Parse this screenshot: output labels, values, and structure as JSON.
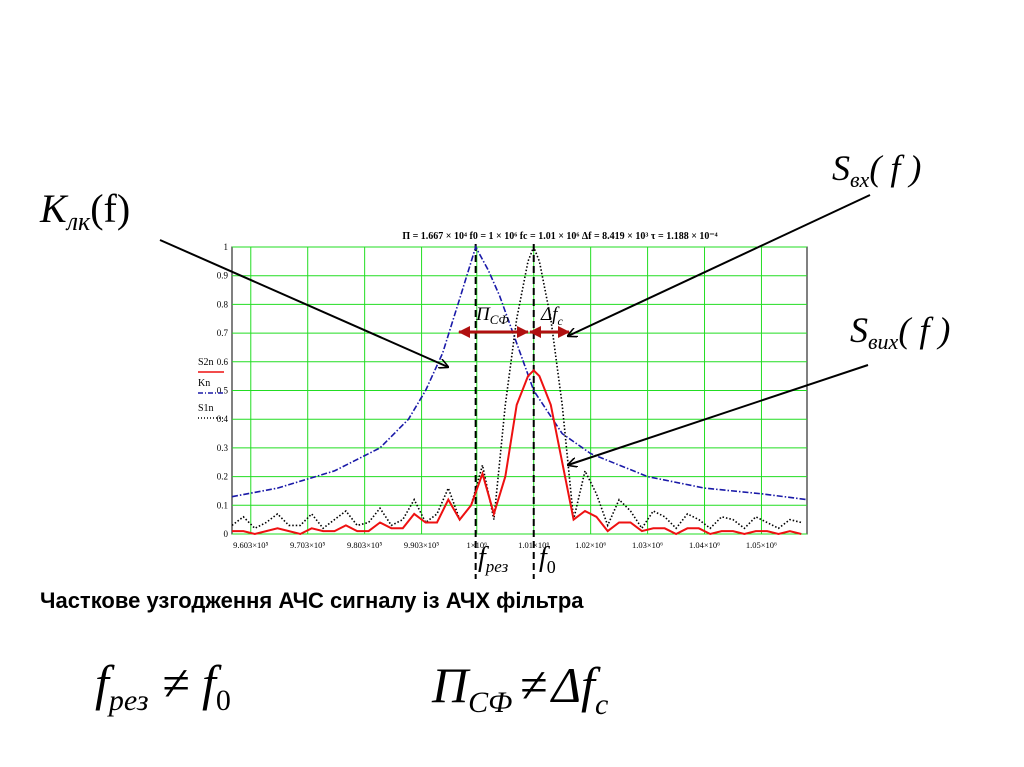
{
  "labels": {
    "k_lk": {
      "base": "K",
      "sub": "лк",
      "arg": "(f)"
    },
    "s_vkh": {
      "base": "S",
      "sub": "вх",
      "arg": "( f )"
    },
    "s_vykh": {
      "base": "S",
      "sub": "вих",
      "arg": "( f )"
    },
    "p_sf": {
      "base": "П",
      "sub": "СФ"
    },
    "delta_fc": {
      "base": "Δf",
      "sub": "c"
    },
    "f_rez": {
      "base": "f",
      "sub": "рез"
    },
    "f_0": {
      "base": "f",
      "sub": "0"
    }
  },
  "caption": "Часткове узгодження АЧС сигналу із АЧХ фільтра",
  "formula_left": {
    "lhs_base": "f",
    "lhs_sub": "рез",
    "op": "≠",
    "rhs_base": "f",
    "rhs_sub": "0"
  },
  "formula_right": {
    "lhs_base": "П",
    "lhs_sub": "СФ",
    "op": "≠",
    "rhs_base": "Δf",
    "rhs_sub": "c"
  },
  "colors": {
    "grid": "#22dd22",
    "k_curve": "#1a1aa8",
    "s1_curve": "#000000",
    "s2_curve": "#ee1111",
    "arrow_red": "#b01010",
    "markers": "#000000"
  },
  "chart_data": {
    "type": "line",
    "header": "П = 1.667 × 10⁴    f0 = 1 × 10⁶    fc = 1.01 × 10⁶    Δf = 8.419 × 10³    τ = 1.188 × 10⁻⁴",
    "xlim": [
      957000,
      1058000
    ],
    "ylim": [
      0,
      1
    ],
    "yticks": [
      0,
      0.1,
      0.2,
      0.3,
      0.4,
      0.5,
      0.6,
      0.7,
      0.8,
      0.9,
      1
    ],
    "xticks": [
      {
        "v": 960300,
        "label": "9.603×10⁵"
      },
      {
        "v": 970300,
        "label": "9.703×10⁵"
      },
      {
        "v": 980300,
        "label": "9.803×10⁵"
      },
      {
        "v": 990300,
        "label": "9.903×10⁵"
      },
      {
        "v": 1000000,
        "label": "1×10⁶"
      },
      {
        "v": 1010000,
        "label": "1.01×10⁶"
      },
      {
        "v": 1020000,
        "label": "1.02×10⁶"
      },
      {
        "v": 1030000,
        "label": "1.03×10⁶"
      },
      {
        "v": 1040000,
        "label": "1.04×10⁶"
      },
      {
        "v": 1050000,
        "label": "1.05×10⁶"
      }
    ],
    "grid": true,
    "legend": {
      "placement": "left",
      "entries": [
        {
          "name": "S2n",
          "style": "solid-red"
        },
        {
          "name": "Kn",
          "style": "dashdot-blue"
        },
        {
          "name": "S1n",
          "style": "dotted-black"
        }
      ]
    },
    "vlines": [
      999800,
      1010000
    ],
    "series": [
      {
        "name": "Kn",
        "style": "dashdot",
        "color": "#1a1aa8",
        "x": [
          957000,
          965000,
          975000,
          983000,
          988000,
          991000,
          994000,
          997000,
          999800,
          1002000,
          1004000,
          1006000,
          1010000,
          1015000,
          1020000,
          1030000,
          1040000,
          1050000,
          1058000
        ],
        "y": [
          0.13,
          0.16,
          0.22,
          0.3,
          0.4,
          0.5,
          0.63,
          0.82,
          1.0,
          0.92,
          0.83,
          0.72,
          0.5,
          0.35,
          0.28,
          0.2,
          0.16,
          0.14,
          0.12
        ]
      },
      {
        "name": "S1n",
        "style": "dotted",
        "color": "#000000",
        "x": [
          957000,
          959000,
          961000,
          963000,
          965000,
          967000,
          969000,
          971000,
          973000,
          975000,
          977000,
          979000,
          981000,
          983000,
          985000,
          987000,
          989000,
          991000,
          993000,
          995000,
          997000,
          999000,
          1001000,
          1003000,
          1005000,
          1007000,
          1009000,
          1010000,
          1011000,
          1013000,
          1015000,
          1017000,
          1019000,
          1021000,
          1023000,
          1025000,
          1027000,
          1029000,
          1031000,
          1033000,
          1035000,
          1037000,
          1039000,
          1041000,
          1043000,
          1045000,
          1047000,
          1049000,
          1051000,
          1053000,
          1055000,
          1057000
        ],
        "y": [
          0.03,
          0.06,
          0.02,
          0.04,
          0.07,
          0.03,
          0.03,
          0.07,
          0.02,
          0.05,
          0.08,
          0.03,
          0.04,
          0.09,
          0.03,
          0.05,
          0.12,
          0.04,
          0.07,
          0.16,
          0.05,
          0.1,
          0.24,
          0.05,
          0.45,
          0.75,
          0.95,
          1.0,
          0.95,
          0.75,
          0.45,
          0.05,
          0.22,
          0.14,
          0.03,
          0.12,
          0.08,
          0.02,
          0.08,
          0.06,
          0.02,
          0.07,
          0.05,
          0.02,
          0.06,
          0.05,
          0.02,
          0.06,
          0.04,
          0.02,
          0.05,
          0.04
        ]
      },
      {
        "name": "S2n",
        "style": "solid",
        "color": "#ee1111",
        "x": [
          957000,
          959000,
          961000,
          963000,
          965000,
          967000,
          969000,
          971000,
          973000,
          975000,
          977000,
          979000,
          981000,
          983000,
          985000,
          987000,
          989000,
          991000,
          993000,
          995000,
          997000,
          999000,
          1001000,
          1003000,
          1005000,
          1007000,
          1009000,
          1010000,
          1011000,
          1013000,
          1015000,
          1017000,
          1019000,
          1021000,
          1023000,
          1025000,
          1027000,
          1029000,
          1031000,
          1033000,
          1035000,
          1037000,
          1039000,
          1041000,
          1043000,
          1045000,
          1047000,
          1049000,
          1051000,
          1053000,
          1055000,
          1057000
        ],
        "y": [
          0.01,
          0.01,
          0.0,
          0.01,
          0.02,
          0.01,
          0.0,
          0.02,
          0.01,
          0.01,
          0.03,
          0.01,
          0.01,
          0.04,
          0.02,
          0.02,
          0.07,
          0.04,
          0.04,
          0.12,
          0.05,
          0.1,
          0.21,
          0.07,
          0.2,
          0.45,
          0.55,
          0.57,
          0.55,
          0.45,
          0.25,
          0.05,
          0.08,
          0.06,
          0.01,
          0.04,
          0.04,
          0.01,
          0.02,
          0.02,
          0.0,
          0.02,
          0.02,
          0.0,
          0.01,
          0.01,
          0.0,
          0.01,
          0.01,
          0.0,
          0.01,
          0.0
        ]
      }
    ]
  }
}
